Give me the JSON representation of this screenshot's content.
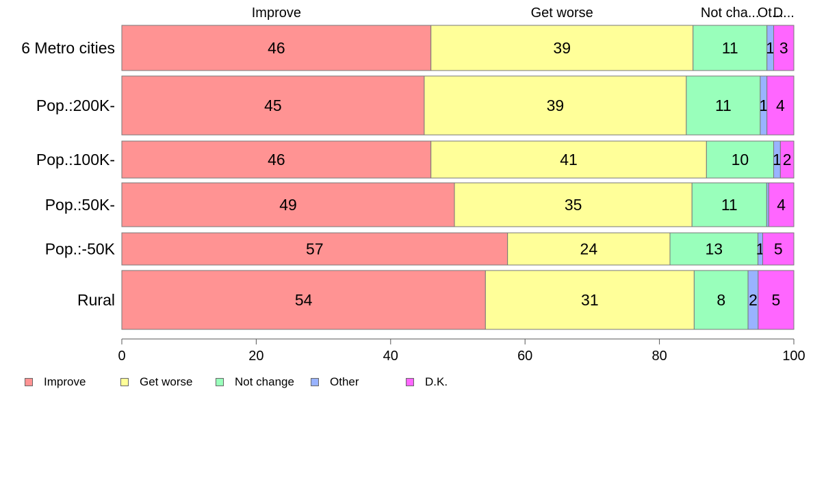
{
  "chart_data": {
    "type": "bar",
    "orientation": "horizontal",
    "stacked": true,
    "categories": [
      "6 Metro cities",
      "Pop.:200K-",
      "Pop.:100K-",
      "Pop.:50K-",
      "Pop.:-50K",
      "Rural"
    ],
    "series": [
      {
        "name": "Improve",
        "color": "#ff9393",
        "values": [
          46,
          45,
          46,
          49,
          57,
          54
        ],
        "labels": [
          "46",
          "45",
          "46",
          "49",
          "57",
          "54"
        ]
      },
      {
        "name": "Get worse",
        "color": "#ffff99",
        "values": [
          39,
          39,
          41,
          35,
          24,
          31
        ],
        "labels": [
          "39",
          "39",
          "41",
          "35",
          "24",
          "31"
        ]
      },
      {
        "name": "Not change",
        "color": "#99ffbb",
        "values": [
          11,
          11,
          10,
          11,
          13,
          8
        ],
        "labels": [
          "11",
          "11",
          "10",
          "11",
          "13",
          "8"
        ]
      },
      {
        "name": "Other",
        "color": "#99b3ff",
        "values": [
          1,
          1,
          1,
          0.3,
          0.7,
          1.5
        ],
        "labels": [
          "1",
          "1",
          "1",
          "",
          "1",
          "2"
        ]
      },
      {
        "name": "D.K.",
        "color": "#ff66ff",
        "values": [
          3,
          4,
          2,
          3.7,
          4.6,
          5.3
        ],
        "labels": [
          "3",
          "4",
          "2",
          "4",
          "5",
          "5"
        ]
      }
    ],
    "top_labels": [
      "Improve",
      "Get worse",
      "Not cha...",
      "Ot...",
      "D..."
    ],
    "xlim": [
      0,
      100
    ],
    "xticks": [
      "0",
      "20",
      "40",
      "60",
      "80",
      "100"
    ],
    "legend_position": "bottom-left",
    "grid": false
  }
}
